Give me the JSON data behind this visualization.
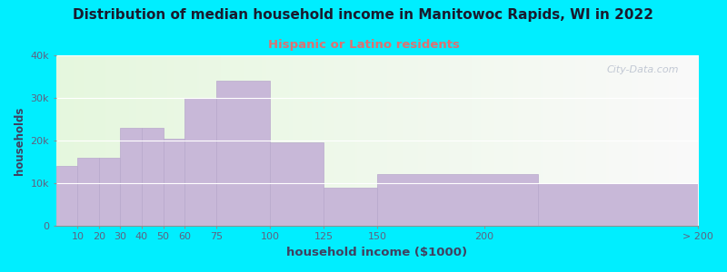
{
  "title": "Distribution of median household income in Manitowoc Rapids, WI in 2022",
  "subtitle": "Hispanic or Latino residents",
  "xlabel": "household income ($1000)",
  "ylabel": "households",
  "background_outer": "#00eeff",
  "bar_color": "#c8b8d8",
  "bar_edge_color": "#b8a8cc",
  "title_color": "#1a1a2e",
  "subtitle_color": "#e07070",
  "axis_label_color": "#404060",
  "tick_color": "#606080",
  "watermark": "City-Data.com",
  "figsize": [
    8.0,
    3.0
  ],
  "dpi": 100,
  "ylim": [
    0,
    40000
  ],
  "yticks": [
    0,
    10000,
    20000,
    30000,
    40000
  ],
  "ytick_labels": [
    "0",
    "10k",
    "20k",
    "30k",
    "40k"
  ],
  "bin_left": [
    0,
    10,
    20,
    30,
    40,
    50,
    60,
    75,
    100,
    125,
    150,
    225
  ],
  "bin_right": [
    10,
    20,
    30,
    40,
    50,
    60,
    75,
    100,
    125,
    150,
    225,
    300
  ],
  "tick_positions": [
    10,
    20,
    30,
    40,
    50,
    60,
    75,
    100,
    125,
    150,
    200,
    300
  ],
  "tick_labels": [
    "10",
    "20",
    "30",
    "40",
    "50",
    "60",
    "75",
    "100",
    "125",
    "150",
    "200",
    "> 200"
  ],
  "values": [
    14000,
    16000,
    16000,
    23000,
    23000,
    20500,
    30000,
    34000,
    19500,
    9000,
    12000,
    10000
  ]
}
